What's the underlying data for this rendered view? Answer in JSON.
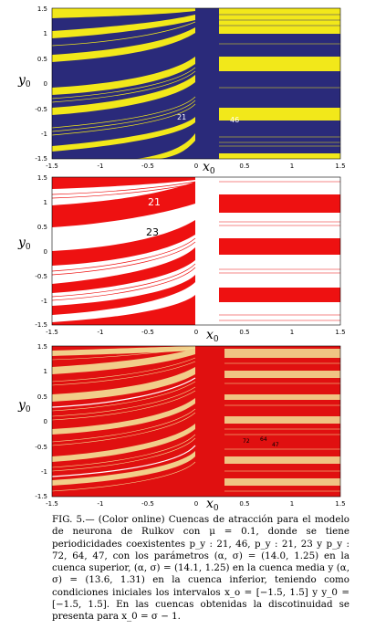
{
  "figure": {
    "panels": [
      {
        "id": "top",
        "colors": {
          "background": "#2a2a7a",
          "stripe": "#f2e81a"
        },
        "ylabel": "y",
        "ylabel_sub": "0",
        "xlabel": "x",
        "xlabel_sub": "0",
        "yticks": [
          "1.5",
          "1",
          "0.5",
          "0",
          "-0.5",
          "-1",
          "-1.5"
        ],
        "xticks": [
          "-1.5",
          "-1",
          "-0.5",
          "0",
          "0.5",
          "1",
          "1.5"
        ],
        "annotations": [
          "21",
          "46"
        ],
        "annotation_color": "#ffffff"
      },
      {
        "id": "middle",
        "colors": {
          "background": "#ffffff",
          "stripe": "#ee1111"
        },
        "ylabel": "y",
        "ylabel_sub": "0",
        "xlabel": "x",
        "xlabel_sub": "0",
        "yticks": [
          "1.5",
          "1",
          "0.5",
          "0",
          "-0.5",
          "-1",
          "-1.5"
        ],
        "xticks": [
          "-1.5",
          "-1",
          "-0.5",
          "0",
          "0.5",
          "1",
          "1.5"
        ],
        "annotations": [
          "21",
          "23"
        ],
        "annotation_colors": [
          "#ffffff",
          "#000000"
        ]
      },
      {
        "id": "bottom",
        "colors": {
          "background": "#e01010",
          "stripe": "#f5f0a0"
        },
        "ylabel": "y",
        "ylabel_sub": "0",
        "xlabel": "x",
        "xlabel_sub": "0",
        "yticks": [
          "1.5",
          "1",
          "0.5",
          "0",
          "-0.5",
          "-1",
          "-1.5"
        ],
        "xticks": [
          "-1.5",
          "-1",
          "-0.5",
          "0",
          "0.5",
          "1",
          "1.5"
        ],
        "annotations": [
          "72",
          "64",
          "47"
        ],
        "annotation_color": "#000000"
      }
    ]
  },
  "caption": {
    "label": "FIG. 5.—",
    "text": "(Color online) Cuencas de atracción para el modelo de neurona de Rulkov con μ = 0.1, donde se tiene periodicidades coexistentes p_y : 21, 46, p_y : 21, 23 y p_y : 72, 64, 47, con los parámetros (α, σ) = (14.0, 1.25) en la cuenca superior, (α, σ) = (14.1, 1.25) en la cuenca media y (α, σ) = (13.6, 1.31) en la cuenca inferior, teniendo como condiciones iniciales los intervalos x_o = [−1.5, 1.5] y y_0 = [−1.5, 1.5]. En las cuencas obtenidas la discotinuidad se presenta para x_0 = σ − 1."
  }
}
